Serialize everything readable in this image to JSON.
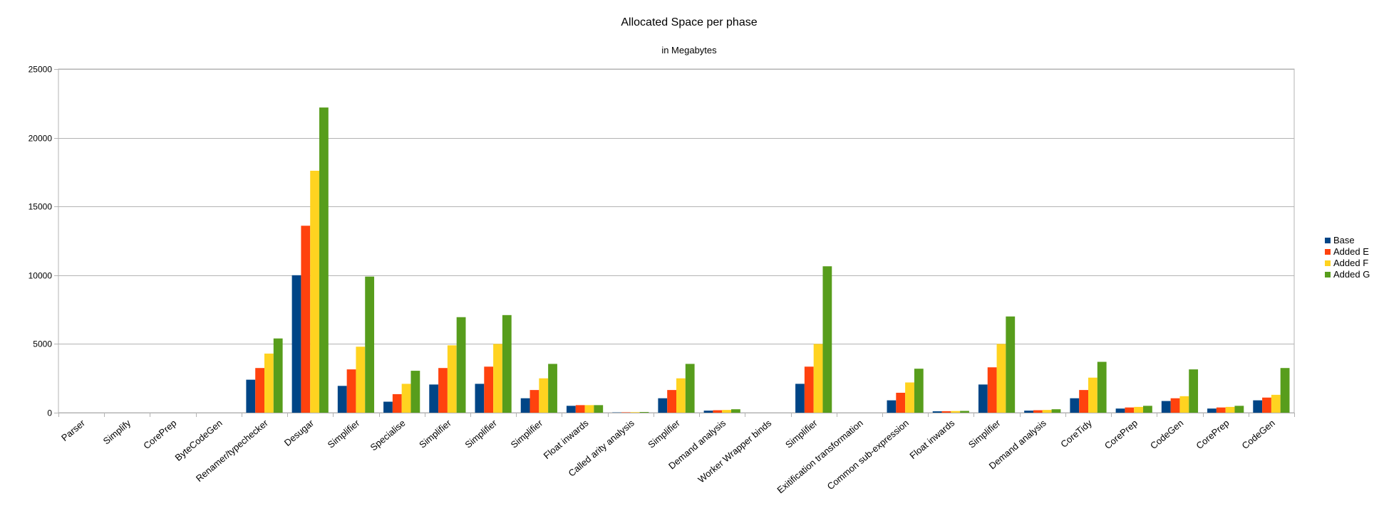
{
  "chart_data": {
    "type": "bar",
    "title": "Allocated Space per phase",
    "subtitle": "in Megabytes",
    "xlabel": "",
    "ylabel": "",
    "ylim": [
      0,
      25000
    ],
    "yticks": [
      0,
      5000,
      10000,
      15000,
      20000,
      25000
    ],
    "grid": true,
    "legend_position": "right",
    "categories": [
      "Parser",
      "Simplify",
      "CorePrep",
      "ByteCodeGen",
      "Renamer/typechecker",
      "Desugar",
      "Simplifier",
      "Specialise",
      "Simplifier",
      "Simplifier",
      "Simplifier",
      "Float inwards",
      "Called arity analysis",
      "Simplifier",
      "Demand analysis",
      "Worker Wrapper binds",
      "Simplifier",
      "Exitification transformation",
      "Common sub-expression",
      "Float inwards",
      "Simplifier",
      "Demand analysis",
      "CoreTidy",
      "CorePrep",
      "CodeGen",
      "CorePrep",
      "CodeGen"
    ],
    "series": [
      {
        "name": "Base",
        "color": "#004586",
        "values": [
          0,
          0,
          0,
          0,
          2400,
          10000,
          1950,
          800,
          2050,
          2100,
          1050,
          500,
          20,
          1050,
          150,
          0,
          2100,
          0,
          900,
          100,
          2050,
          150,
          1050,
          300,
          850,
          300,
          900
        ]
      },
      {
        "name": "Added E",
        "color": "#ff420e",
        "values": [
          0,
          0,
          0,
          0,
          3250,
          13600,
          3150,
          1350,
          3250,
          3350,
          1650,
          550,
          30,
          1650,
          180,
          0,
          3350,
          0,
          1450,
          110,
          3300,
          180,
          1650,
          380,
          1050,
          380,
          1100
        ]
      },
      {
        "name": "Added F",
        "color": "#ffd320",
        "values": [
          0,
          0,
          0,
          0,
          4300,
          17600,
          4800,
          2100,
          4900,
          5000,
          2500,
          550,
          40,
          2500,
          200,
          0,
          5000,
          0,
          2200,
          120,
          5000,
          200,
          2550,
          420,
          1200,
          420,
          1300
        ]
      },
      {
        "name": "Added G",
        "color": "#579d1c",
        "values": [
          0,
          0,
          0,
          0,
          5400,
          22200,
          9900,
          3050,
          6950,
          7100,
          3550,
          550,
          50,
          3550,
          250,
          0,
          10650,
          0,
          3200,
          130,
          7000,
          250,
          3700,
          500,
          3150,
          500,
          3250
        ]
      }
    ]
  }
}
